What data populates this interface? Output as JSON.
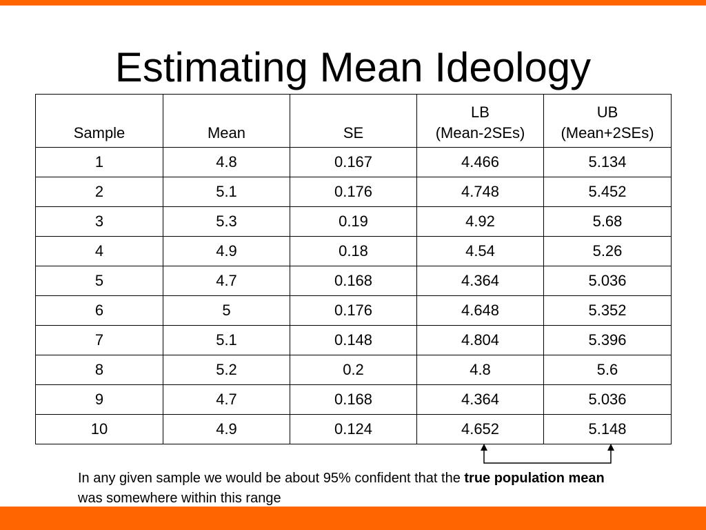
{
  "title": "Estimating Mean Ideology",
  "table": {
    "headers": [
      {
        "line1": "",
        "line2": "Sample"
      },
      {
        "line1": "",
        "line2": "Mean"
      },
      {
        "line1": "",
        "line2": "SE"
      },
      {
        "line1": "LB",
        "line2": "(Mean-2SEs)"
      },
      {
        "line1": "UB",
        "line2": "(Mean+2SEs)"
      }
    ],
    "rows": [
      [
        "1",
        "4.8",
        "0.167",
        "4.466",
        "5.134"
      ],
      [
        "2",
        "5.1",
        "0.176",
        "4.748",
        "5.452"
      ],
      [
        "3",
        "5.3",
        "0.19",
        "4.92",
        "5.68"
      ],
      [
        "4",
        "4.9",
        "0.18",
        "4.54",
        "5.26"
      ],
      [
        "5",
        "4.7",
        "0.168",
        "4.364",
        "5.036"
      ],
      [
        "6",
        "5",
        "0.176",
        "4.648",
        "5.352"
      ],
      [
        "7",
        "5.1",
        "0.148",
        "4.804",
        "5.396"
      ],
      [
        "8",
        "5.2",
        "0.2",
        "4.8",
        "5.6"
      ],
      [
        "9",
        "4.7",
        "0.168",
        "4.364",
        "5.036"
      ],
      [
        "10",
        "4.9",
        "0.124",
        "4.652",
        "5.148"
      ]
    ]
  },
  "note": {
    "part1": "In any given sample we would be about 95% confident that the ",
    "bold": "true population mean",
    "part2": " was somewhere within this range"
  },
  "colors": {
    "accent": "#ff6600"
  }
}
